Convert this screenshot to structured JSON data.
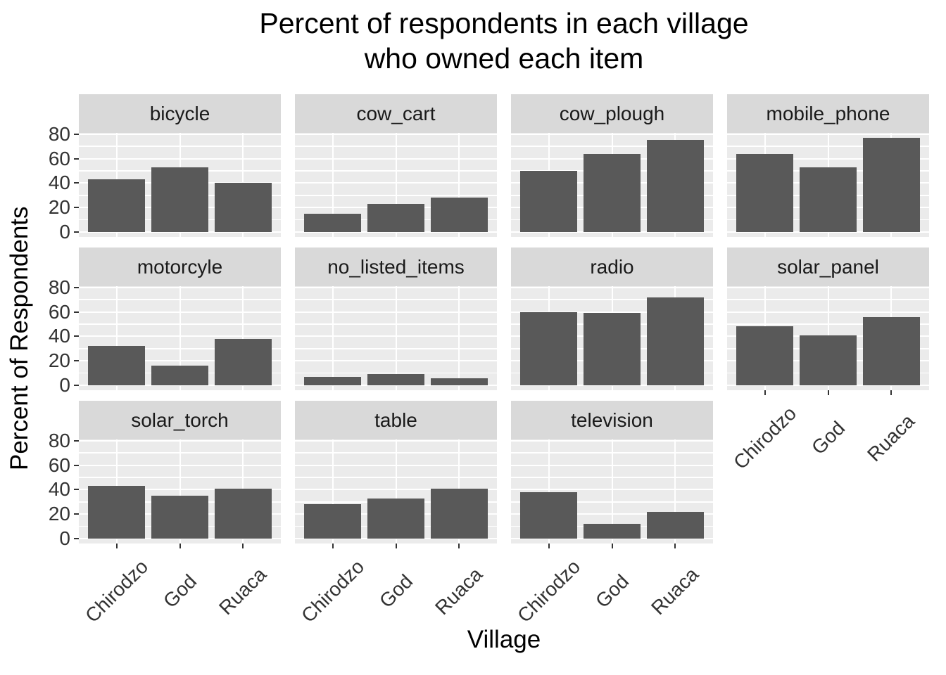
{
  "chart": {
    "title_line1": "Percent of respondents in each village",
    "title_line2": "who owned each item"
  },
  "chart_data": {
    "type": "bar",
    "title": "Percent of respondents in each village who owned each item",
    "xlabel": "Village",
    "ylabel": "Percent of Respondents",
    "categories": [
      "Chirodzo",
      "God",
      "Ruaca"
    ],
    "y_ticks": [
      0,
      20,
      40,
      60,
      80
    ],
    "ylim": [
      0,
      81
    ],
    "grid": true,
    "legend": false,
    "facet_layout": {
      "columns": 4,
      "rows": 3
    },
    "facets": [
      {
        "label": "bicycle",
        "values": [
          43,
          53,
          40
        ]
      },
      {
        "label": "cow_cart",
        "values": [
          15,
          23,
          28
        ]
      },
      {
        "label": "cow_plough",
        "values": [
          50,
          64,
          75
        ]
      },
      {
        "label": "mobile_phone",
        "values": [
          64,
          53,
          77
        ]
      },
      {
        "label": "motorcyle",
        "values": [
          32,
          16,
          38
        ]
      },
      {
        "label": "no_listed_items",
        "values": [
          7,
          9,
          6
        ]
      },
      {
        "label": "radio",
        "values": [
          60,
          59,
          72
        ]
      },
      {
        "label": "solar_panel",
        "values": [
          48,
          41,
          56
        ]
      },
      {
        "label": "solar_torch",
        "values": [
          43,
          35,
          41
        ]
      },
      {
        "label": "table",
        "values": [
          28,
          33,
          41
        ]
      },
      {
        "label": "television",
        "values": [
          38,
          12,
          22
        ]
      }
    ],
    "colors": {
      "bar": "#595959",
      "panel_background": "#EBEBEB",
      "strip_background": "#D9D9D9",
      "gridline": "#FFFFFF",
      "axis_text": "#333333",
      "title_text": "#000000"
    }
  }
}
